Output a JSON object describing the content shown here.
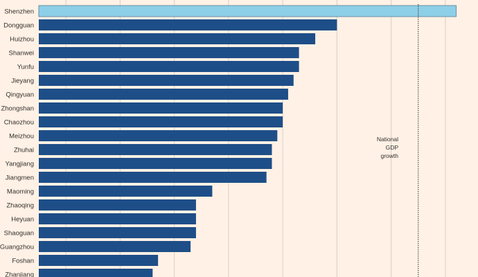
{
  "chart_data": {
    "type": "bar",
    "orientation": "horizontal",
    "categories": [
      "Shenzhen",
      "Dongguan",
      "Huizhou",
      "Shanwei",
      "Yunfu",
      "Jieyang",
      "Qingyuan",
      "Zhongshan",
      "Chaozhou",
      "Meizhou",
      "Zhuhai",
      "Yangjiang",
      "Jiangmen",
      "Maoming",
      "Zhaoqing",
      "Heyuan",
      "Shaoguan",
      "Guangzhou",
      "Foshan",
      "Zhanjiang"
    ],
    "values": [
      10.2,
      8.0,
      7.6,
      7.3,
      7.3,
      7.2,
      7.1,
      7.0,
      7.0,
      6.9,
      6.8,
      6.8,
      6.7,
      5.7,
      5.4,
      5.4,
      5.4,
      5.3,
      4.7,
      4.6
    ],
    "highlight_index": 0,
    "xlim": [
      2.5,
      10.5
    ],
    "gridlines": [
      3,
      4,
      5,
      6,
      7,
      8,
      9,
      10
    ],
    "grid": true,
    "reference_line": {
      "value": 9.5,
      "label_lines": [
        "National",
        "GDP",
        "growth"
      ]
    },
    "colors": {
      "bar": "#1e4e88",
      "highlight": "#8ecfe8",
      "highlight_stroke": "#6b8fa3",
      "grid": "#d7cfc6",
      "background": "#fff1e5",
      "reference": "#33302e"
    }
  }
}
